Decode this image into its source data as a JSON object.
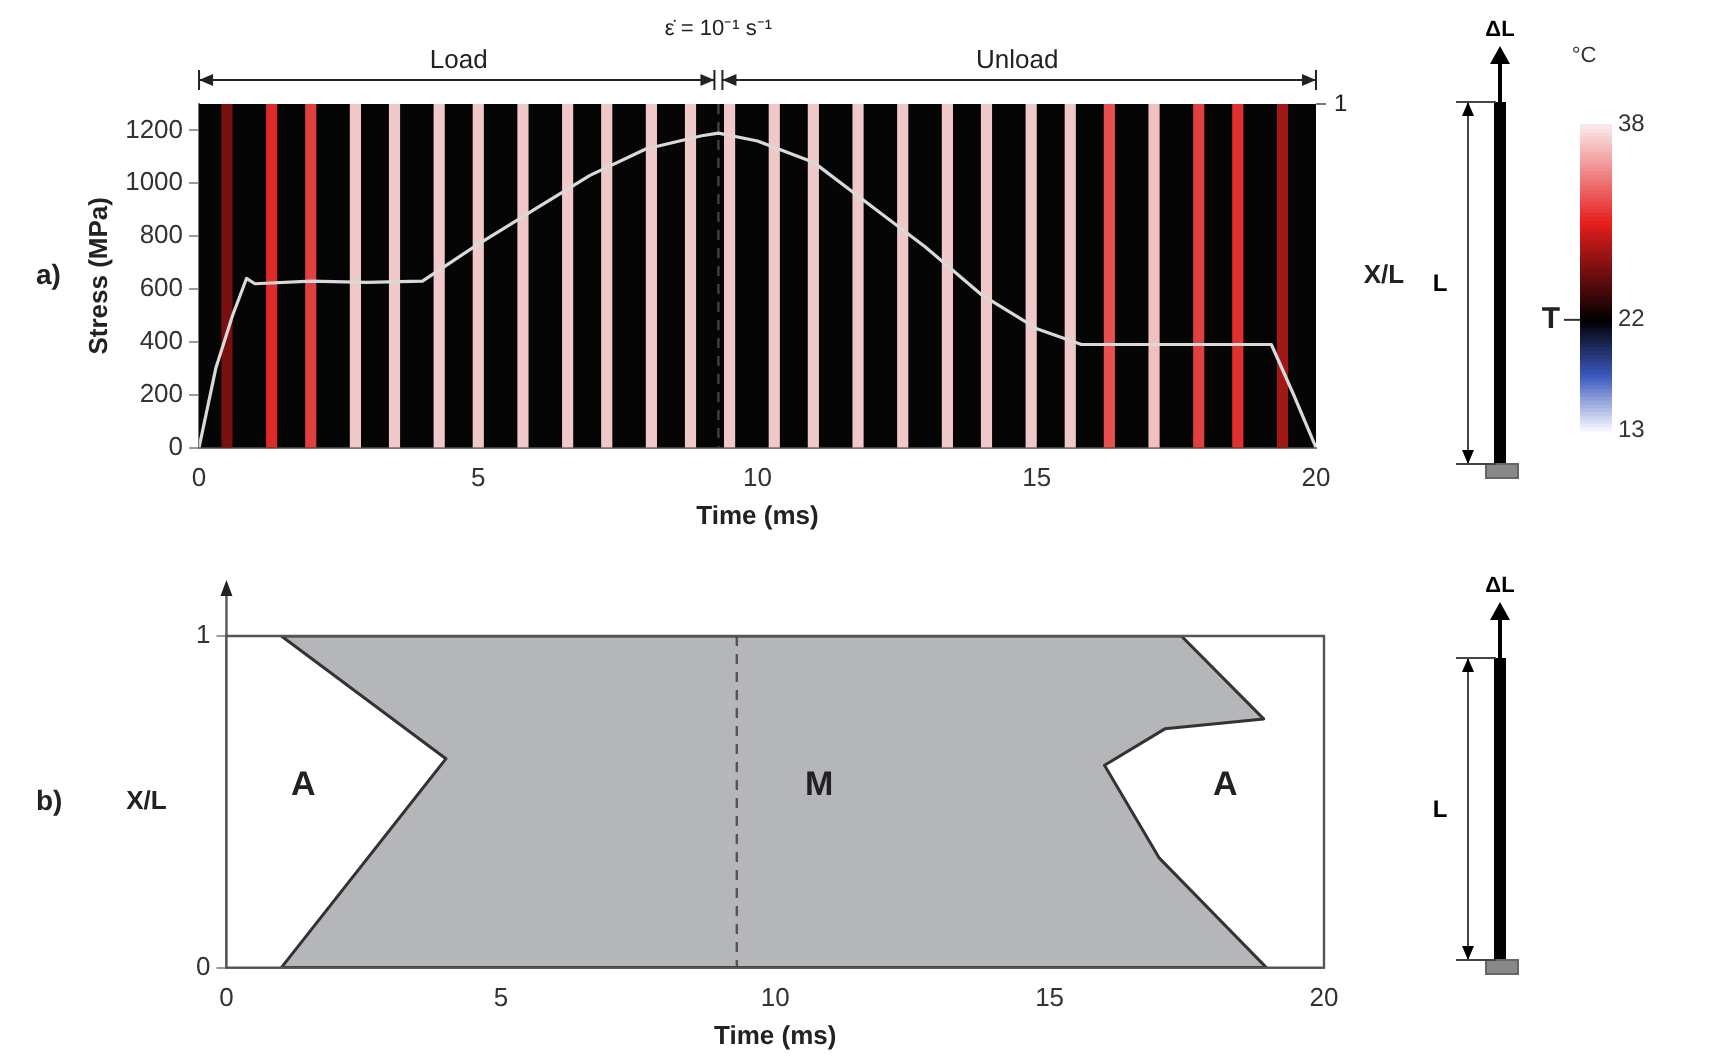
{
  "chart_data": [
    {
      "type": "line",
      "xlabel": "Time (ms)",
      "ylabel": "Stress (MPa)",
      "y2label": "X/L",
      "xlim": [
        0,
        20
      ],
      "xticks": [
        0,
        5,
        10,
        15,
        20
      ],
      "ylim": [
        0,
        1300
      ],
      "yticks": [
        0,
        200,
        400,
        600,
        800,
        1000,
        1200
      ],
      "series": [
        {
          "color": "#d9d9d9",
          "x": [
            0,
            0.3,
            0.6,
            0.85,
            1.0,
            2,
            3,
            4,
            4.5,
            5,
            6,
            7,
            8,
            9,
            9.3,
            10,
            11,
            12,
            13,
            14,
            15,
            15.8,
            17,
            18,
            19.2,
            19.6,
            20
          ],
          "values": [
            0,
            300,
            500,
            640,
            620,
            630,
            625,
            630,
            700,
            770,
            900,
            1030,
            1130,
            1180,
            1190,
            1160,
            1080,
            920,
            760,
            580,
            450,
            390,
            390,
            390,
            390,
            200,
            0
          ]
        }
      ],
      "ref_lines": [
        {
          "axis": "x",
          "value": 9.3,
          "color": "#404040",
          "line_style": "dashed"
        }
      ],
      "bands": [
        {
          "axis": "x",
          "from": 0.4,
          "to": 0.6,
          "color": "#7a1010"
        },
        {
          "axis": "x",
          "from": 1.2,
          "to": 1.4,
          "color": "#e02a2a"
        },
        {
          "axis": "x",
          "from": 1.9,
          "to": 2.1,
          "color": "#e04040"
        },
        {
          "axis": "x",
          "from": 2.7,
          "to": 2.9,
          "color": "#f0c8c8"
        },
        {
          "axis": "x",
          "from": 3.4,
          "to": 3.6,
          "color": "#f0c8c8"
        },
        {
          "axis": "x",
          "from": 4.2,
          "to": 4.4,
          "color": "#f0c8c8"
        },
        {
          "axis": "x",
          "from": 4.9,
          "to": 5.1,
          "color": "#f0c8c8"
        },
        {
          "axis": "x",
          "from": 5.7,
          "to": 5.9,
          "color": "#f0c8c8"
        },
        {
          "axis": "x",
          "from": 6.5,
          "to": 6.7,
          "color": "#f0c8c8"
        },
        {
          "axis": "x",
          "from": 7.2,
          "to": 7.4,
          "color": "#f0c8c8"
        },
        {
          "axis": "x",
          "from": 8.0,
          "to": 8.2,
          "color": "#f0c8c8"
        },
        {
          "axis": "x",
          "from": 8.7,
          "to": 8.9,
          "color": "#f0c8c8"
        },
        {
          "axis": "x",
          "from": 9.4,
          "to": 9.6,
          "color": "#f0c8c8"
        },
        {
          "axis": "x",
          "from": 10.2,
          "to": 10.4,
          "color": "#f0c8c8"
        },
        {
          "axis": "x",
          "from": 10.9,
          "to": 11.1,
          "color": "#f0c8c8"
        },
        {
          "axis": "x",
          "from": 11.7,
          "to": 11.9,
          "color": "#f0c8c8"
        },
        {
          "axis": "x",
          "from": 12.5,
          "to": 12.7,
          "color": "#f0c8c8"
        },
        {
          "axis": "x",
          "from": 13.3,
          "to": 13.5,
          "color": "#f0c8c8"
        },
        {
          "axis": "x",
          "from": 14.0,
          "to": 14.2,
          "color": "#f0c8c8"
        },
        {
          "axis": "x",
          "from": 14.8,
          "to": 15.0,
          "color": "#f0c8c8"
        },
        {
          "axis": "x",
          "from": 15.5,
          "to": 15.7,
          "color": "#f0c8c8"
        },
        {
          "axis": "x",
          "from": 16.2,
          "to": 16.4,
          "color": "#e85050"
        },
        {
          "axis": "x",
          "from": 17.0,
          "to": 17.2,
          "color": "#f0c0c0"
        },
        {
          "axis": "x",
          "from": 17.8,
          "to": 18.0,
          "color": "#e04040"
        },
        {
          "axis": "x",
          "from": 18.5,
          "to": 18.7,
          "color": "#e03030"
        },
        {
          "axis": "x",
          "from": 19.3,
          "to": 19.5,
          "color": "#a01818"
        }
      ],
      "clabel": "°C",
      "clim": [
        13,
        38
      ],
      "cticks": [
        13,
        22,
        38
      ],
      "annotations": [
        "a)",
        "Load",
        "Unload",
        "ΔL",
        "L",
        "T",
        "ε̇ = 10⁻¹ s⁻¹",
        "1"
      ]
    },
    {
      "type": "area",
      "xlabel": "Time (ms)",
      "ylabel": "X/L",
      "xlim": [
        0,
        20
      ],
      "xticks": [
        0,
        5,
        10,
        15,
        20
      ],
      "ylim": [
        0,
        1
      ],
      "yticks": [
        0,
        1
      ],
      "series": [
        {
          "color": "#b4b6ba",
          "x": [
            1,
            17.4,
            18.9,
            17.1,
            16,
            17,
            18.95,
            1,
            4,
            1
          ],
          "values": [
            1,
            1,
            0.75,
            0.72,
            0.61,
            0.33,
            0,
            0,
            0.63,
            1
          ]
        }
      ],
      "ref_lines": [
        {
          "axis": "x",
          "value": 9.3,
          "color": "#555555",
          "line_style": "dashed"
        }
      ],
      "annotations": [
        "b)",
        "A",
        "M",
        "A",
        "ΔL",
        "L"
      ]
    }
  ]
}
